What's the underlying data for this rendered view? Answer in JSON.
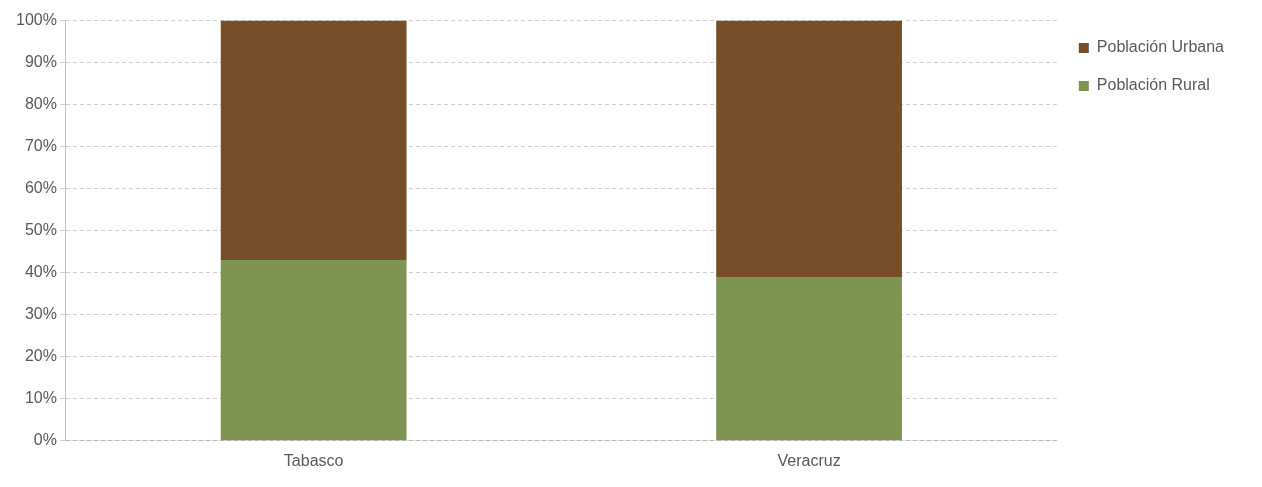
{
  "chart_data": {
    "type": "bar",
    "stacked": true,
    "categories": [
      "Tabasco",
      "Veracruz"
    ],
    "series": [
      {
        "name": "Población Rural",
        "color": "#7f9451",
        "values": [
          43,
          39
        ]
      },
      {
        "name": "Población Urbana",
        "color": "#764f2a",
        "values": [
          57,
          61
        ]
      }
    ],
    "ylim": [
      0,
      100
    ],
    "yticks": [
      {
        "value": 0,
        "label": "0%"
      },
      {
        "value": 10,
        "label": "10%"
      },
      {
        "value": 20,
        "label": "20%"
      },
      {
        "value": 30,
        "label": "30%"
      },
      {
        "value": 40,
        "label": "40%"
      },
      {
        "value": 50,
        "label": "50%"
      },
      {
        "value": 60,
        "label": "60%"
      },
      {
        "value": 70,
        "label": "70%"
      },
      {
        "value": 80,
        "label": "80%"
      },
      {
        "value": 90,
        "label": "90%"
      },
      {
        "value": 100,
        "label": "100%"
      }
    ],
    "grid": "y",
    "legend": "right"
  }
}
